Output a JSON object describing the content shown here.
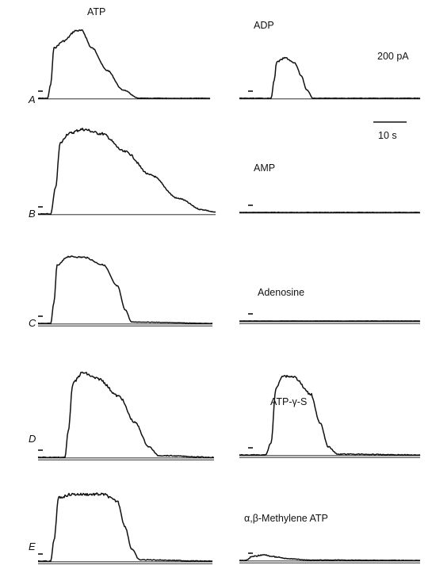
{
  "figure": {
    "column_headers": {
      "left": "ATP",
      "right": "ADP"
    },
    "row_labels": [
      "A",
      "B",
      "C",
      "D",
      "E"
    ],
    "right_trace_labels": [
      "ADP",
      "AMP",
      "Adenosine",
      "ATP-γ-S",
      "α,β-Methylene ATP"
    ],
    "scale_bar": {
      "current": "200 pA",
      "time": "10 s"
    },
    "ink_color": "#111111"
  }
}
